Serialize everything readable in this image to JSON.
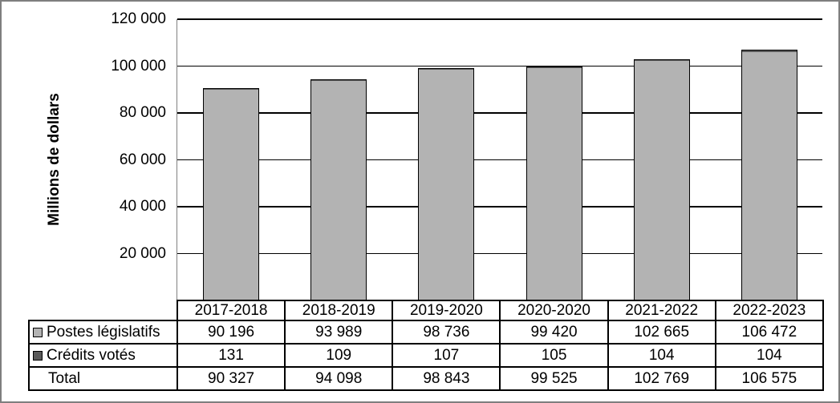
{
  "chart_data": {
    "type": "bar",
    "subtype": "stacked-columns-with-data-table",
    "title": "",
    "ylabel": "Millions de dollars",
    "xlabel": "",
    "ylim": [
      0,
      120000
    ],
    "grid": true,
    "legend_position": "table-row-labels",
    "yticks": [
      {
        "value": 120000,
        "label": "120 000"
      },
      {
        "value": 100000,
        "label": "100 000"
      },
      {
        "value": 80000,
        "label": "80 000"
      },
      {
        "value": 60000,
        "label": "60 000"
      },
      {
        "value": 40000,
        "label": "40 000"
      },
      {
        "value": 20000,
        "label": "20 000"
      }
    ],
    "categories": [
      "2017-2018",
      "2018-2019",
      "2019-2020",
      "2020-2020",
      "2021-2022",
      "2022-2023"
    ],
    "series": [
      {
        "name": "Postes législatifs",
        "color": "#b3b3b3",
        "values": [
          90196,
          93989,
          98736,
          99420,
          102665,
          106472
        ],
        "labels": [
          "90 196",
          "93 989",
          "98 736",
          "99 420",
          "102 665",
          "106 472"
        ]
      },
      {
        "name": "Crédits votés",
        "color": "#595959",
        "values": [
          131,
          109,
          107,
          105,
          104,
          104
        ],
        "labels": [
          "131",
          "109",
          "107",
          "105",
          "104",
          "104"
        ]
      }
    ],
    "total_row": {
      "name": "Total",
      "values": [
        90327,
        94098,
        98843,
        99525,
        102769,
        106575
      ],
      "labels": [
        "90 327",
        "94 098",
        "98 843",
        "99 525",
        "102 769",
        "106 575"
      ]
    }
  },
  "colors": {
    "bar_light": "#b3b3b3",
    "bar_dark": "#595959",
    "axis_line": "#808080",
    "grid_line": "#000000",
    "table_border": "#000000",
    "outer_border": "#7f7f7f"
  }
}
